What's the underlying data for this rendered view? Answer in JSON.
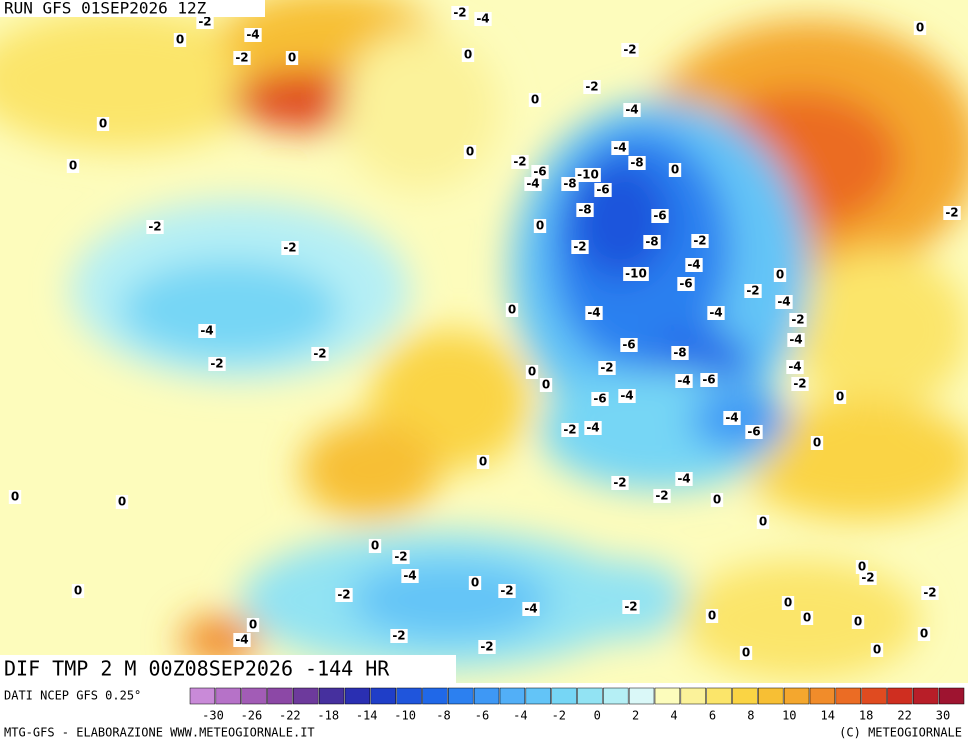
{
  "header": {
    "run": "RUN GFS 01SEP2026 12Z"
  },
  "footer": {
    "field": "DIF TMP 2 M 00Z08SEP2026 -144 HR",
    "source": "DATI NCEP GFS 0.25°",
    "credit_left": "MTG-GFS - ELABORAZIONE WWW.METEOGIORNALE.IT",
    "credit_right": "(C) METEOGIORNALE"
  },
  "scale": {
    "ticks": [
      -30,
      -26,
      -22,
      -18,
      -14,
      -10,
      -8,
      -6,
      -4,
      -2,
      0,
      2,
      4,
      6,
      8,
      10,
      14,
      18,
      22,
      30
    ],
    "colors": [
      "#c98ad8",
      "#b672c8",
      "#a25cb6",
      "#8c48a6",
      "#6d3a9c",
      "#46309e",
      "#2a2fb2",
      "#1f3ec8",
      "#1f55dc",
      "#2068e8",
      "#2c80f0",
      "#3e98f5",
      "#52aff7",
      "#63c4f7",
      "#76d6f5",
      "#92e3f3",
      "#b5eff5",
      "#daf8f8",
      "#fcfcbc",
      "#fbf29a",
      "#fbe56a",
      "#fad444",
      "#f7bf34",
      "#f4a72e",
      "#f18c2a",
      "#eb6c24",
      "#e04b20",
      "#cf2e20",
      "#b81e28",
      "#9e1430"
    ]
  },
  "map_labels": [
    0,
    -2,
    -4,
    -2,
    0,
    -2,
    -4,
    0,
    0,
    -2,
    -2,
    -4,
    -4,
    -8,
    0,
    -2,
    -6,
    -4,
    -10,
    -8,
    -6,
    -8,
    -6,
    -8,
    -2,
    -2,
    -10,
    -4,
    -6,
    0,
    0,
    -2,
    -4,
    -2,
    -4,
    -4,
    -4,
    0,
    -6,
    -8,
    -2,
    -4,
    -6,
    -4,
    -2,
    0,
    0,
    -6,
    -4,
    0,
    -2,
    -4,
    -4,
    -6,
    0,
    0,
    -4,
    -2,
    -2,
    0,
    0,
    0,
    -2,
    -4,
    0,
    -2,
    -2,
    -4,
    -2,
    0,
    0,
    0,
    0,
    -2,
    -2,
    0,
    0,
    0,
    0,
    -2,
    -2,
    -4,
    0,
    0,
    0,
    0,
    0,
    0,
    0,
    -2,
    -2,
    -4,
    -2,
    -2,
    0,
    -2
  ]
}
